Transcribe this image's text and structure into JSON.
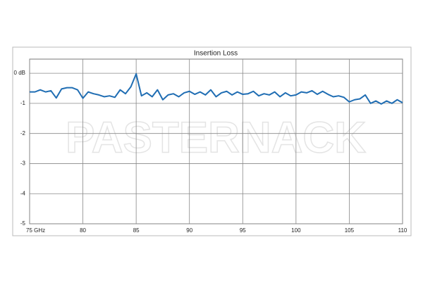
{
  "chart_data": {
    "type": "line",
    "title": "Insertion Loss",
    "watermark": "PASTERNACK",
    "x": [
      75,
      75.5,
      76,
      76.5,
      77,
      77.5,
      78,
      78.5,
      79,
      79.5,
      80,
      80.5,
      81,
      81.5,
      82,
      82.5,
      83,
      83.5,
      84,
      84.5,
      85,
      85.5,
      86,
      86.5,
      87,
      87.5,
      88,
      88.5,
      89,
      89.5,
      90,
      90.5,
      91,
      91.5,
      92,
      92.5,
      93,
      93.5,
      94,
      94.5,
      95,
      95.5,
      96,
      96.5,
      97,
      97.5,
      98,
      98.5,
      99,
      99.5,
      100,
      100.5,
      101,
      101.5,
      102,
      102.5,
      103,
      103.5,
      104,
      104.5,
      105,
      105.5,
      106,
      106.5,
      107,
      107.5,
      108,
      108.5,
      109,
      109.5,
      110
    ],
    "values": [
      -0.62,
      -0.62,
      -0.55,
      -0.62,
      -0.58,
      -0.82,
      -0.52,
      -0.48,
      -0.48,
      -0.55,
      -0.83,
      -0.62,
      -0.68,
      -0.72,
      -0.78,
      -0.75,
      -0.8,
      -0.55,
      -0.68,
      -0.45,
      -0.02,
      -0.75,
      -0.65,
      -0.78,
      -0.55,
      -0.88,
      -0.72,
      -0.68,
      -0.78,
      -0.65,
      -0.6,
      -0.7,
      -0.62,
      -0.72,
      -0.55,
      -0.78,
      -0.65,
      -0.6,
      -0.72,
      -0.62,
      -0.7,
      -0.68,
      -0.6,
      -0.75,
      -0.68,
      -0.72,
      -0.62,
      -0.78,
      -0.65,
      -0.75,
      -0.72,
      -0.62,
      -0.65,
      -0.58,
      -0.7,
      -0.6,
      -0.7,
      -0.78,
      -0.75,
      -0.8,
      -0.95,
      -0.88,
      -0.85,
      -0.72,
      -1.0,
      -0.92,
      -1.02,
      -0.92,
      -1.0,
      -0.88,
      -0.98
    ],
    "color": "#1f6db3",
    "xlim": [
      75,
      110
    ],
    "xticks": [
      {
        "value": 75,
        "label": "75  GHz"
      },
      80,
      85,
      90,
      95,
      100,
      105,
      110
    ],
    "ylim": [
      -5,
      0.47
    ],
    "yticks": [
      {
        "value": 0,
        "label": "0 dB"
      },
      -1,
      -2,
      -3,
      -4,
      -5
    ],
    "grid": true
  }
}
